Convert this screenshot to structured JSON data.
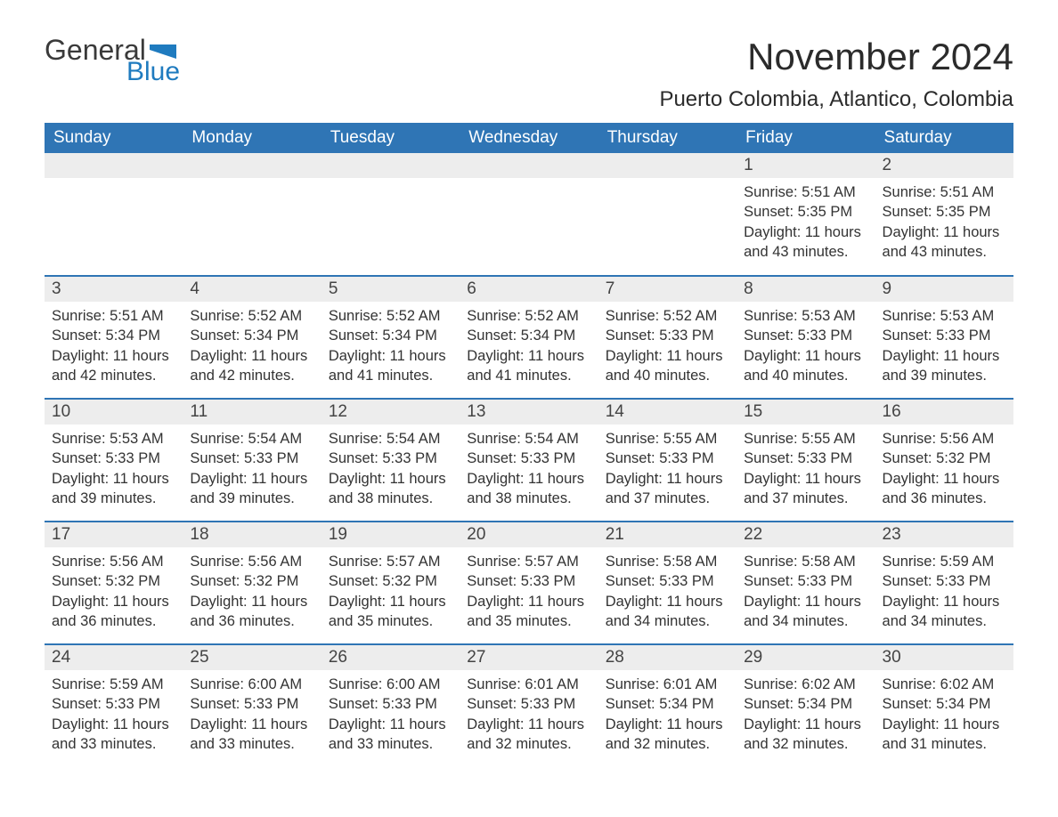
{
  "brand": {
    "word1": "General",
    "word2": "Blue",
    "accent_color": "#1f7bbf"
  },
  "title": "November 2024",
  "location": "Puerto Colombia, Atlantico, Colombia",
  "header_bg": "#2f75b5",
  "daynum_bg": "#ededed",
  "rule_color": "#2f75b5",
  "weekdays": [
    "Sunday",
    "Monday",
    "Tuesday",
    "Wednesday",
    "Thursday",
    "Friday",
    "Saturday"
  ],
  "weeks": [
    [
      null,
      null,
      null,
      null,
      null,
      {
        "n": "1",
        "sr": "5:51 AM",
        "ss": "5:35 PM",
        "dl": "11 hours and 43 minutes."
      },
      {
        "n": "2",
        "sr": "5:51 AM",
        "ss": "5:35 PM",
        "dl": "11 hours and 43 minutes."
      }
    ],
    [
      {
        "n": "3",
        "sr": "5:51 AM",
        "ss": "5:34 PM",
        "dl": "11 hours and 42 minutes."
      },
      {
        "n": "4",
        "sr": "5:52 AM",
        "ss": "5:34 PM",
        "dl": "11 hours and 42 minutes."
      },
      {
        "n": "5",
        "sr": "5:52 AM",
        "ss": "5:34 PM",
        "dl": "11 hours and 41 minutes."
      },
      {
        "n": "6",
        "sr": "5:52 AM",
        "ss": "5:34 PM",
        "dl": "11 hours and 41 minutes."
      },
      {
        "n": "7",
        "sr": "5:52 AM",
        "ss": "5:33 PM",
        "dl": "11 hours and 40 minutes."
      },
      {
        "n": "8",
        "sr": "5:53 AM",
        "ss": "5:33 PM",
        "dl": "11 hours and 40 minutes."
      },
      {
        "n": "9",
        "sr": "5:53 AM",
        "ss": "5:33 PM",
        "dl": "11 hours and 39 minutes."
      }
    ],
    [
      {
        "n": "10",
        "sr": "5:53 AM",
        "ss": "5:33 PM",
        "dl": "11 hours and 39 minutes."
      },
      {
        "n": "11",
        "sr": "5:54 AM",
        "ss": "5:33 PM",
        "dl": "11 hours and 39 minutes."
      },
      {
        "n": "12",
        "sr": "5:54 AM",
        "ss": "5:33 PM",
        "dl": "11 hours and 38 minutes."
      },
      {
        "n": "13",
        "sr": "5:54 AM",
        "ss": "5:33 PM",
        "dl": "11 hours and 38 minutes."
      },
      {
        "n": "14",
        "sr": "5:55 AM",
        "ss": "5:33 PM",
        "dl": "11 hours and 37 minutes."
      },
      {
        "n": "15",
        "sr": "5:55 AM",
        "ss": "5:33 PM",
        "dl": "11 hours and 37 minutes."
      },
      {
        "n": "16",
        "sr": "5:56 AM",
        "ss": "5:32 PM",
        "dl": "11 hours and 36 minutes."
      }
    ],
    [
      {
        "n": "17",
        "sr": "5:56 AM",
        "ss": "5:32 PM",
        "dl": "11 hours and 36 minutes."
      },
      {
        "n": "18",
        "sr": "5:56 AM",
        "ss": "5:32 PM",
        "dl": "11 hours and 36 minutes."
      },
      {
        "n": "19",
        "sr": "5:57 AM",
        "ss": "5:32 PM",
        "dl": "11 hours and 35 minutes."
      },
      {
        "n": "20",
        "sr": "5:57 AM",
        "ss": "5:33 PM",
        "dl": "11 hours and 35 minutes."
      },
      {
        "n": "21",
        "sr": "5:58 AM",
        "ss": "5:33 PM",
        "dl": "11 hours and 34 minutes."
      },
      {
        "n": "22",
        "sr": "5:58 AM",
        "ss": "5:33 PM",
        "dl": "11 hours and 34 minutes."
      },
      {
        "n": "23",
        "sr": "5:59 AM",
        "ss": "5:33 PM",
        "dl": "11 hours and 34 minutes."
      }
    ],
    [
      {
        "n": "24",
        "sr": "5:59 AM",
        "ss": "5:33 PM",
        "dl": "11 hours and 33 minutes."
      },
      {
        "n": "25",
        "sr": "6:00 AM",
        "ss": "5:33 PM",
        "dl": "11 hours and 33 minutes."
      },
      {
        "n": "26",
        "sr": "6:00 AM",
        "ss": "5:33 PM",
        "dl": "11 hours and 33 minutes."
      },
      {
        "n": "27",
        "sr": "6:01 AM",
        "ss": "5:33 PM",
        "dl": "11 hours and 32 minutes."
      },
      {
        "n": "28",
        "sr": "6:01 AM",
        "ss": "5:34 PM",
        "dl": "11 hours and 32 minutes."
      },
      {
        "n": "29",
        "sr": "6:02 AM",
        "ss": "5:34 PM",
        "dl": "11 hours and 32 minutes."
      },
      {
        "n": "30",
        "sr": "6:02 AM",
        "ss": "5:34 PM",
        "dl": "11 hours and 31 minutes."
      }
    ]
  ],
  "labels": {
    "sunrise": "Sunrise:",
    "sunset": "Sunset:",
    "daylight": "Daylight:"
  }
}
